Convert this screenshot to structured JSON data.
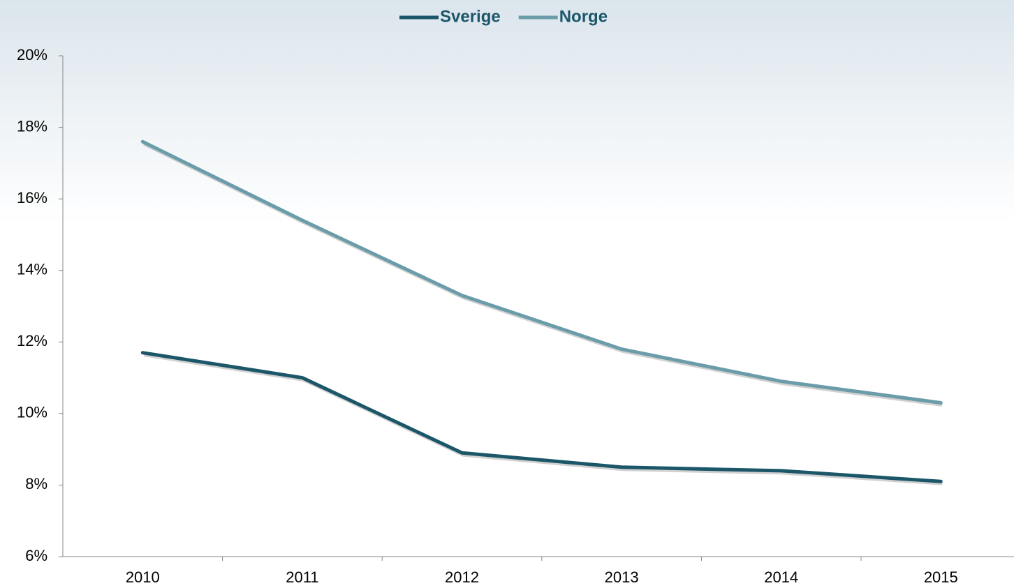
{
  "chart_data": {
    "type": "line",
    "categories": [
      "2010",
      "2011",
      "2012",
      "2013",
      "2014",
      "2015"
    ],
    "series": [
      {
        "name": "Sverige",
        "color": "#1b5669",
        "values": [
          11.7,
          11.0,
          8.9,
          8.5,
          8.4,
          8.1
        ]
      },
      {
        "name": "Norge",
        "color": "#6a9ca9",
        "values": [
          17.6,
          15.4,
          13.3,
          11.8,
          10.9,
          10.3
        ]
      }
    ],
    "ylim": [
      6,
      20
    ],
    "yticks": [
      {
        "value": 6,
        "label": "6%"
      },
      {
        "value": 8,
        "label": "8%"
      },
      {
        "value": 10,
        "label": "10%"
      },
      {
        "value": 12,
        "label": "12%"
      },
      {
        "value": 14,
        "label": "14%"
      },
      {
        "value": 16,
        "label": "16%"
      },
      {
        "value": 18,
        "label": "18%"
      },
      {
        "value": 20,
        "label": "20%"
      }
    ],
    "grid": false,
    "legend": "top"
  }
}
